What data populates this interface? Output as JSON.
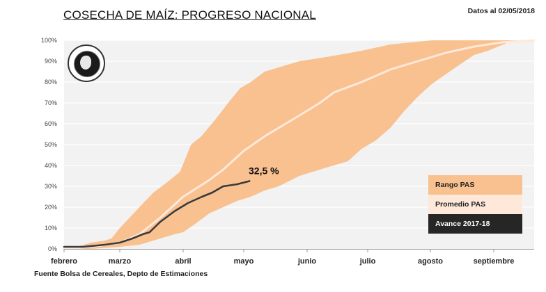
{
  "header": {
    "title": "COSECHA DE MAÍZ: PROGRESO NACIONAL",
    "date_label": "Datos al 02/05/2018"
  },
  "footer": {
    "source": "Fuente Bolsa de Cereales, Depto de Estimaciones"
  },
  "logo": {
    "icon": "bolsa-de-cereales-seal-icon"
  },
  "colors": {
    "plot_bg": "#f2f2f2",
    "grid": "#ffffff",
    "range": "#f9c190",
    "average": "#fde8da",
    "current": "#3a3a3a",
    "legend_range_bg": "#f9c190",
    "legend_avg_bg": "#fde8da",
    "legend_current_bg": "#262626"
  },
  "legend": [
    {
      "label": "Rango PAS",
      "key": "range"
    },
    {
      "label": "Promedio PAS",
      "key": "average"
    },
    {
      "label": "Avance 2017-18",
      "key": "current"
    }
  ],
  "chart_data": {
    "type": "area",
    "title": "COSECHA DE MAÍZ: PROGRESO NACIONAL",
    "xlabel": "",
    "ylabel": "",
    "x_unit": "months since 1 Feb (0=febrero, 7=septiembre)",
    "categories": [
      "febrero",
      "marzo",
      "abril",
      "mayo",
      "junio",
      "julio",
      "agosto",
      "septiembre"
    ],
    "xlim": [
      0,
      7.65
    ],
    "ylim": [
      0,
      100
    ],
    "yticks": [
      "0%",
      "10%",
      "20%",
      "30%",
      "40%",
      "50%",
      "60%",
      "70%",
      "80%",
      "90%",
      "100%"
    ],
    "grid": true,
    "legend_position": "bottom-right",
    "annotation": {
      "text": "32,5 %",
      "x": 3.0,
      "y": 32.5
    },
    "series": [
      {
        "name": "Rango PAS (máximo)",
        "x": [
          0,
          0.23,
          0.48,
          0.73,
          0.85,
          1.0,
          1.31,
          1.53,
          1.75,
          1.95,
          2.13,
          2.3,
          2.53,
          2.77,
          2.94,
          3.11,
          3.33,
          3.55,
          3.88,
          4.32,
          4.9,
          5.36,
          6.02,
          7.65
        ],
        "values": [
          1,
          1,
          3,
          4,
          5,
          10,
          20,
          27,
          32,
          37,
          50,
          54,
          62,
          71,
          77,
          80,
          85,
          87,
          90,
          92,
          95,
          98,
          100,
          100
        ]
      },
      {
        "name": "Rango PAS (mínimo)",
        "x": [
          0,
          0.48,
          1.0,
          1.31,
          1.53,
          1.86,
          2.0,
          2.2,
          2.43,
          2.66,
          2.89,
          3.11,
          3.33,
          3.55,
          3.88,
          4.32,
          4.67,
          4.9,
          5.13,
          5.36,
          5.58,
          5.8,
          6.02,
          6.35,
          6.69,
          6.91,
          7.23,
          7.65
        ],
        "values": [
          0,
          0,
          1,
          2,
          4,
          7,
          8,
          12,
          17,
          20,
          23,
          25,
          28,
          30,
          35,
          39,
          42,
          48,
          52,
          58,
          66,
          73,
          79,
          86,
          93,
          95,
          99,
          100
        ]
      },
      {
        "name": "Promedio PAS",
        "x": [
          0,
          0.48,
          1.0,
          1.31,
          1.64,
          2.0,
          2.43,
          2.66,
          3.0,
          3.33,
          3.55,
          3.88,
          4.21,
          4.44,
          4.9,
          5.36,
          5.8,
          6.24,
          6.69,
          7.12,
          7.65
        ],
        "values": [
          0,
          1,
          3,
          7,
          15,
          25,
          33,
          38,
          47,
          54,
          58,
          64,
          70,
          75,
          80,
          86,
          90,
          94,
          97,
          99,
          100
        ]
      },
      {
        "name": "Avance 2017-18",
        "x": [
          0,
          0.35,
          0.73,
          1.0,
          1.2,
          1.36,
          1.47,
          1.64,
          1.86,
          2.08,
          2.31,
          2.48,
          2.66,
          2.89,
          3.09
        ],
        "values": [
          1,
          1,
          2,
          3,
          5,
          7,
          8,
          13,
          18,
          22,
          25,
          27,
          30,
          31,
          32.5
        ]
      }
    ]
  }
}
